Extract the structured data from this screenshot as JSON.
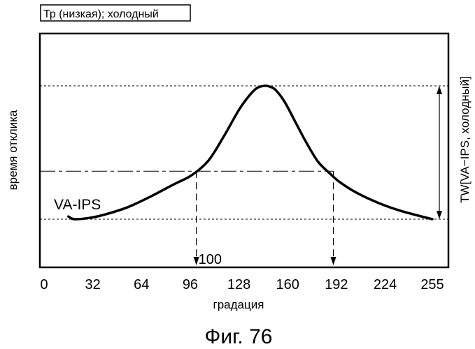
{
  "figure": {
    "condition_box": "Тр (низкая); холодный",
    "caption": "Фиг. 76"
  },
  "chart_data": {
    "type": "line",
    "xlabel": "градация",
    "ylabel": "время отклика",
    "xlim": [
      0,
      255
    ],
    "x_ticks": [
      0,
      32,
      64,
      96,
      128,
      160,
      192,
      224,
      255
    ],
    "x_tick_labels": [
      "0",
      "32",
      "64",
      "96",
      "128",
      "160",
      "192",
      "224",
      "255"
    ],
    "series": [
      {
        "name": "VA-IPS",
        "x": [
          16,
          20,
          30,
          40,
          55,
          70,
          85,
          97,
          108,
          118,
          128,
          135,
          140,
          145,
          148,
          152,
          158,
          165,
          172,
          180,
          188,
          194,
          205,
          220,
          235,
          255
        ],
        "y": [
          0.02,
          0.0,
          0.01,
          0.035,
          0.09,
          0.17,
          0.26,
          0.33,
          0.44,
          0.62,
          0.82,
          0.93,
          0.985,
          1.0,
          0.995,
          0.97,
          0.88,
          0.73,
          0.58,
          0.43,
          0.34,
          0.28,
          0.2,
          0.12,
          0.06,
          0.0
        ]
      }
    ],
    "annotations": {
      "marker_x_label": "100",
      "marker_x_positions": [
        100,
        190
      ],
      "tw_label": "TW[VA−IPS, холодный]"
    }
  }
}
